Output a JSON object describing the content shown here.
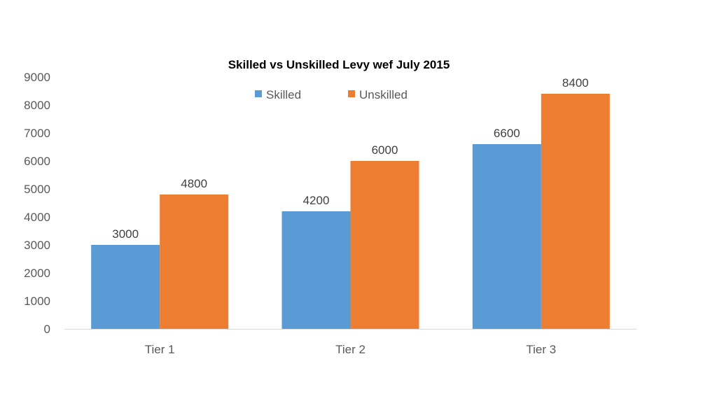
{
  "chart_data": {
    "type": "bar",
    "title": "Skilled vs Unskilled Levy wef July 2015",
    "xlabel": "",
    "ylabel": "",
    "categories": [
      "Tier 1",
      "Tier 2",
      "Tier 3"
    ],
    "series": [
      {
        "name": "Skilled",
        "color": "#5b9bd5",
        "values": [
          3000,
          4200,
          6600
        ]
      },
      {
        "name": "Unskilled",
        "color": "#ed7d31",
        "values": [
          4800,
          6000,
          8400
        ]
      }
    ],
    "ylim": [
      0,
      9000
    ],
    "yticks": [
      0,
      1000,
      2000,
      3000,
      4000,
      5000,
      6000,
      7000,
      8000,
      9000
    ],
    "grid": false,
    "legend_position": "top-center",
    "data_labels": true
  }
}
